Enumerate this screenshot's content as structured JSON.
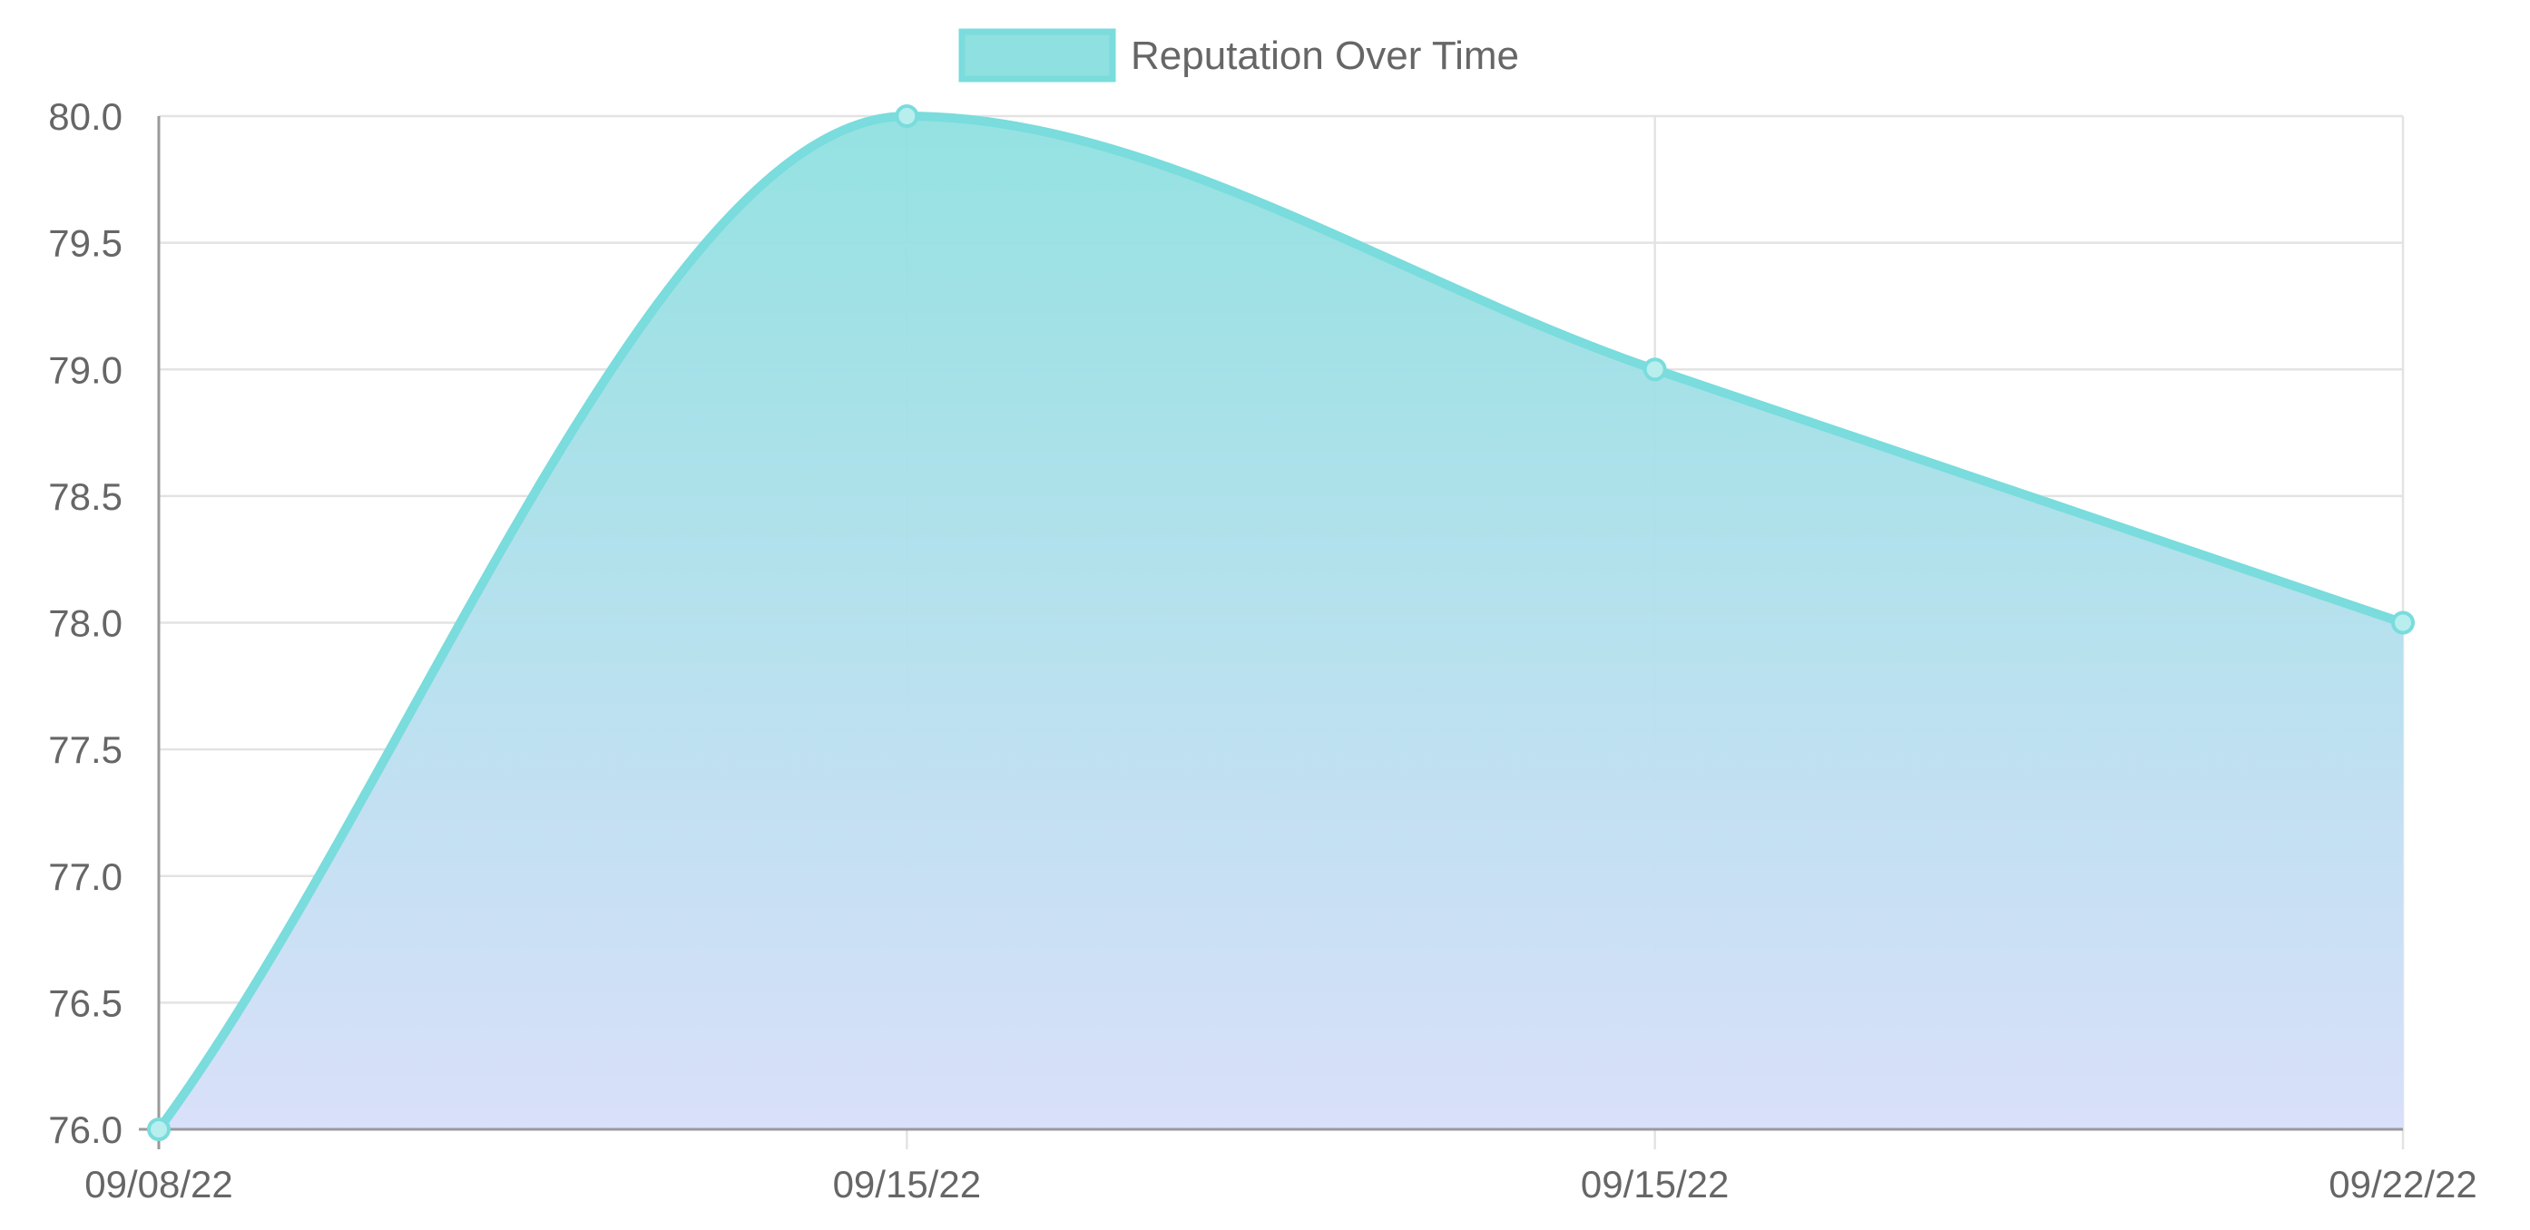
{
  "chart_data": {
    "type": "area",
    "title": "",
    "xlabel": "",
    "ylabel": "",
    "categories": [
      "09/08/22",
      "09/15/22",
      "09/15/22",
      "09/22/22"
    ],
    "series": [
      {
        "name": "Reputation Over Time",
        "values": [
          76.0,
          80.0,
          79.0,
          78.0
        ]
      }
    ],
    "ylim": [
      76.0,
      80.0
    ],
    "y_ticks": [
      "80.0",
      "79.5",
      "79.0",
      "78.5",
      "78.0",
      "77.5",
      "77.0",
      "76.5",
      "76.0"
    ],
    "grid": true,
    "legend_position": "top-center",
    "colors": {
      "line": "#7adcdc",
      "fill_top": "#8fe0e0",
      "fill_bottom": "#d9e0fa",
      "point_fill": "#b8eeee",
      "grid": "#e3e3e3",
      "axis": "#9a9a9a",
      "text": "#666666"
    }
  }
}
